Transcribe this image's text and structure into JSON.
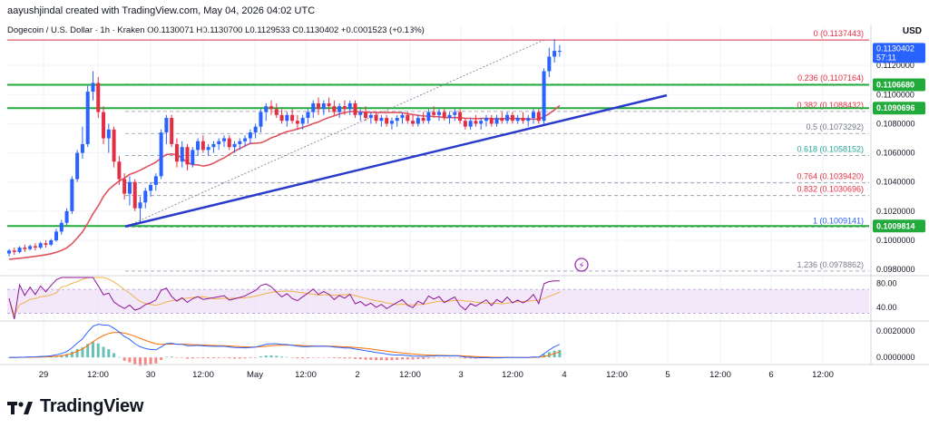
{
  "header": {
    "text": "aayushjindal created with TradingView.com, May 04, 2026 04:02 UTC"
  },
  "symbol": {
    "text": "Dogecoin / U.S. Dollar · 1h · Kraken  O0.1130071  H0.1130700  L0.1129533  C0.1130402  +0.0001523 (+0.13%)"
  },
  "currency": "USD",
  "brand": {
    "name": "TradingView",
    "logo_icon": "tradingview-logo-icon"
  },
  "colors": {
    "up": "#2962ff",
    "down": "#e32f45",
    "grid": "#f0f3fa",
    "fib_red": "#e32f45",
    "fib_green": "#26a69a",
    "fib_gray": "#787b86",
    "hline": "#22ab3c",
    "trend": "#2a3bcc",
    "ma": "#e0525d",
    "rsi": "#8e1599",
    "rsi_ma": "#f0b246",
    "macd": "#2962ff",
    "signal": "#ff6d00"
  },
  "chart_data": {
    "type": "candlestick",
    "timeframe": "1h",
    "x_ticks": [
      "29",
      "12:00",
      "30",
      "12:00",
      "May",
      "12:00",
      "2",
      "12:00",
      "3",
      "12:00",
      "4",
      "12:00",
      "5",
      "12:00",
      "6",
      "12:00"
    ],
    "y_ticks": [
      "0.1120000",
      "0.1100000",
      "0.1080000",
      "0.1060000",
      "0.1040000",
      "0.1020000",
      "0.1000000",
      "0.0980000"
    ],
    "ylim": [
      0.0977,
      0.114
    ],
    "price_label": {
      "value": "0.1130402",
      "countdown": "57:11"
    },
    "horizontal_levels": [
      {
        "label": "0.1106680",
        "value": 0.110668
      },
      {
        "label": "0.1090696",
        "value": 0.1090696
      },
      {
        "label": "0.1009814",
        "value": 0.1009814
      }
    ],
    "fibonacci": [
      {
        "ratio": "0",
        "label": "0 (0.1137443)",
        "value": 0.1137443,
        "color": "red"
      },
      {
        "ratio": "0.236",
        "label": "0.236 (0.1107164)",
        "value": 0.1107164,
        "color": "red"
      },
      {
        "ratio": "0.382",
        "label": "0.382 (0.1088432)",
        "value": 0.1088432,
        "color": "red"
      },
      {
        "ratio": "0.5",
        "label": "0.5 (0.1073292)",
        "value": 0.1073292,
        "color": "gray"
      },
      {
        "ratio": "0.618",
        "label": "0.618 (0.1058152)",
        "value": 0.1058152,
        "color": "green"
      },
      {
        "ratio": "0.764",
        "label": "0.764 (0.1039420)",
        "value": 0.103942,
        "color": "red"
      },
      {
        "ratio": "0.832",
        "label": "0.832 (0.1030696)",
        "value": 0.1030696,
        "color": "red"
      },
      {
        "ratio": "1",
        "label": "1 (0.1009141)",
        "value": 0.1009141,
        "color": "blue"
      },
      {
        "ratio": "1.236",
        "label": "1.236 (0.0978862)",
        "value": 0.0978862,
        "color": "gray"
      }
    ],
    "candles": [
      [
        0.0991,
        0.0994,
        0.0989,
        0.0993
      ],
      [
        0.0993,
        0.0995,
        0.099,
        0.0992
      ],
      [
        0.0992,
        0.0996,
        0.0991,
        0.0995
      ],
      [
        0.0995,
        0.0997,
        0.0992,
        0.0994
      ],
      [
        0.0994,
        0.0997,
        0.0993,
        0.0996
      ],
      [
        0.0996,
        0.0998,
        0.0993,
        0.0995
      ],
      [
        0.0995,
        0.0999,
        0.0994,
        0.0998
      ],
      [
        0.0998,
        0.1,
        0.0995,
        0.0997
      ],
      [
        0.0997,
        0.1001,
        0.0996,
        0.1
      ],
      [
        0.1,
        0.1008,
        0.0999,
        0.1006
      ],
      [
        0.1006,
        0.1014,
        0.1004,
        0.1012
      ],
      [
        0.1012,
        0.1022,
        0.101,
        0.102
      ],
      [
        0.102,
        0.1044,
        0.1018,
        0.1042
      ],
      [
        0.1042,
        0.1062,
        0.104,
        0.106
      ],
      [
        0.106,
        0.1078,
        0.1056,
        0.1066
      ],
      [
        0.1066,
        0.1106,
        0.1064,
        0.1102
      ],
      [
        0.1102,
        0.1116,
        0.1096,
        0.1108
      ],
      [
        0.1108,
        0.1112,
        0.1084,
        0.1088
      ],
      [
        0.1088,
        0.1092,
        0.1066,
        0.107
      ],
      [
        0.107,
        0.108,
        0.106,
        0.1076
      ],
      [
        0.1076,
        0.1078,
        0.105,
        0.1054
      ],
      [
        0.1054,
        0.1058,
        0.1038,
        0.1042
      ],
      [
        0.1042,
        0.1046,
        0.1028,
        0.1032
      ],
      [
        0.1032,
        0.1044,
        0.1024,
        0.104
      ],
      [
        0.104,
        0.1042,
        0.102,
        0.1022
      ],
      [
        0.1022,
        0.103,
        0.1012,
        0.1026
      ],
      [
        0.1026,
        0.1036,
        0.1022,
        0.1034
      ],
      [
        0.1034,
        0.104,
        0.103,
        0.1038
      ],
      [
        0.1038,
        0.1046,
        0.1034,
        0.1044
      ],
      [
        0.1044,
        0.1076,
        0.1042,
        0.1074
      ],
      [
        0.1074,
        0.1086,
        0.1066,
        0.1084
      ],
      [
        0.1084,
        0.1086,
        0.1064,
        0.1066
      ],
      [
        0.1066,
        0.107,
        0.105,
        0.1054
      ],
      [
        0.1054,
        0.1068,
        0.105,
        0.1064
      ],
      [
        0.1064,
        0.1066,
        0.1048,
        0.1052
      ],
      [
        0.1052,
        0.1064,
        0.105,
        0.1062
      ],
      [
        0.1062,
        0.107,
        0.1058,
        0.1068
      ],
      [
        0.1068,
        0.1072,
        0.106,
        0.1062
      ],
      [
        0.1062,
        0.1066,
        0.1058,
        0.1064
      ],
      [
        0.1064,
        0.1068,
        0.106,
        0.1066
      ],
      [
        0.1066,
        0.107,
        0.1062,
        0.1068
      ],
      [
        0.1068,
        0.1072,
        0.1064,
        0.107
      ],
      [
        0.107,
        0.1072,
        0.1062,
        0.1064
      ],
      [
        0.1064,
        0.1068,
        0.106,
        0.1066
      ],
      [
        0.1066,
        0.107,
        0.1062,
        0.1068
      ],
      [
        0.1068,
        0.1072,
        0.1064,
        0.107
      ],
      [
        0.107,
        0.1076,
        0.1066,
        0.1074
      ],
      [
        0.1074,
        0.108,
        0.107,
        0.1078
      ],
      [
        0.1078,
        0.109,
        0.1074,
        0.1088
      ],
      [
        0.1088,
        0.1094,
        0.1082,
        0.1092
      ],
      [
        0.1092,
        0.1096,
        0.1086,
        0.109
      ],
      [
        0.109,
        0.1094,
        0.1084,
        0.1086
      ],
      [
        0.1086,
        0.109,
        0.108,
        0.1082
      ],
      [
        0.1082,
        0.1088,
        0.1078,
        0.1086
      ],
      [
        0.1086,
        0.109,
        0.108,
        0.1082
      ],
      [
        0.1082,
        0.1086,
        0.1076,
        0.108
      ],
      [
        0.108,
        0.1086,
        0.1076,
        0.1084
      ],
      [
        0.1084,
        0.109,
        0.108,
        0.1088
      ],
      [
        0.1088,
        0.1096,
        0.1084,
        0.1094
      ],
      [
        0.1094,
        0.1098,
        0.1086,
        0.109
      ],
      [
        0.109,
        0.1096,
        0.1086,
        0.1094
      ],
      [
        0.1094,
        0.1098,
        0.1088,
        0.1092
      ],
      [
        0.1092,
        0.1096,
        0.1086,
        0.1088
      ],
      [
        0.1088,
        0.1094,
        0.1084,
        0.1092
      ],
      [
        0.1092,
        0.1096,
        0.1086,
        0.109
      ],
      [
        0.109,
        0.1096,
        0.1086,
        0.1094
      ],
      [
        0.1094,
        0.1096,
        0.1084,
        0.1086
      ],
      [
        0.1086,
        0.109,
        0.1082,
        0.1088
      ],
      [
        0.1088,
        0.1092,
        0.1082,
        0.1084
      ],
      [
        0.1084,
        0.1088,
        0.108,
        0.1086
      ],
      [
        0.1086,
        0.1088,
        0.108,
        0.1082
      ],
      [
        0.1082,
        0.1086,
        0.1078,
        0.1084
      ],
      [
        0.1084,
        0.1086,
        0.1078,
        0.108
      ],
      [
        0.108,
        0.1084,
        0.1076,
        0.1082
      ],
      [
        0.1082,
        0.1086,
        0.1078,
        0.1084
      ],
      [
        0.1084,
        0.1088,
        0.108,
        0.1086
      ],
      [
        0.1086,
        0.1088,
        0.108,
        0.1082
      ],
      [
        0.1082,
        0.1086,
        0.1078,
        0.108
      ],
      [
        0.108,
        0.1086,
        0.1078,
        0.1084
      ],
      [
        0.1084,
        0.1088,
        0.108,
        0.1082
      ],
      [
        0.1082,
        0.109,
        0.108,
        0.1088
      ],
      [
        0.1088,
        0.1092,
        0.1084,
        0.1086
      ],
      [
        0.1086,
        0.109,
        0.1082,
        0.1088
      ],
      [
        0.1088,
        0.109,
        0.1082,
        0.1084
      ],
      [
        0.1084,
        0.1088,
        0.108,
        0.1086
      ],
      [
        0.1086,
        0.109,
        0.1082,
        0.1088
      ],
      [
        0.1088,
        0.109,
        0.108,
        0.1082
      ],
      [
        0.1082,
        0.1084,
        0.1076,
        0.1078
      ],
      [
        0.1078,
        0.1084,
        0.1076,
        0.1082
      ],
      [
        0.1082,
        0.1086,
        0.1078,
        0.108
      ],
      [
        0.108,
        0.1084,
        0.1076,
        0.1082
      ],
      [
        0.1082,
        0.1086,
        0.1078,
        0.1084
      ],
      [
        0.1084,
        0.1086,
        0.1078,
        0.108
      ],
      [
        0.108,
        0.1086,
        0.1078,
        0.1084
      ],
      [
        0.1084,
        0.1088,
        0.108,
        0.1082
      ],
      [
        0.1082,
        0.1088,
        0.108,
        0.1086
      ],
      [
        0.1086,
        0.1088,
        0.108,
        0.1082
      ],
      [
        0.1082,
        0.1086,
        0.108,
        0.1084
      ],
      [
        0.1084,
        0.1088,
        0.108,
        0.1082
      ],
      [
        0.1082,
        0.1086,
        0.1078,
        0.1084
      ],
      [
        0.1084,
        0.109,
        0.108,
        0.1088
      ],
      [
        0.1088,
        0.109,
        0.108,
        0.1082
      ],
      [
        0.1082,
        0.1118,
        0.108,
        0.1116
      ],
      [
        0.1116,
        0.1132,
        0.1112,
        0.1126
      ],
      [
        0.1126,
        0.1138,
        0.1122,
        0.113
      ],
      [
        0.113,
        0.1134,
        0.1126,
        0.113
      ]
    ],
    "rsi": {
      "y_ticks": [
        "80.00",
        "40.00"
      ],
      "ylim": [
        20,
        90
      ],
      "band": [
        30,
        70
      ]
    },
    "macd": {
      "y_ticks": [
        "0.0020000",
        "0.0000000"
      ],
      "ylim": [
        -0.0004,
        0.0026
      ]
    }
  }
}
